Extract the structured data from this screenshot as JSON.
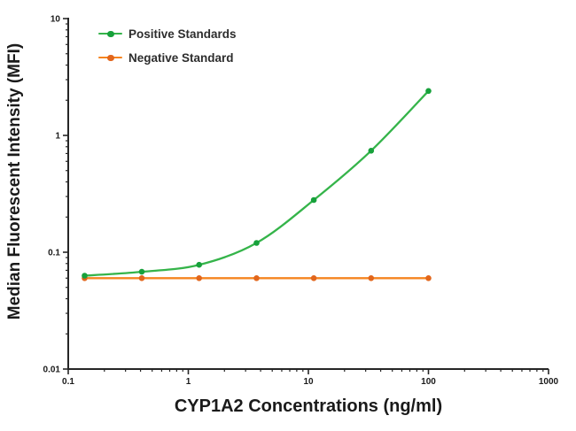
{
  "figure": {
    "background": "#ffffff",
    "axis_color": "#262626",
    "tick_label_color": "#1a1a1a"
  },
  "chart_data": {
    "type": "line",
    "title": "",
    "xlabel": "CYP1A2 Concentrations (ng/ml)",
    "ylabel": "Median Fluorescent Intensity  (MFI)",
    "x_scale": "log",
    "y_scale": "log",
    "xlim": [
      0.1,
      1000
    ],
    "ylim": [
      0.01,
      10
    ],
    "x_ticks": [
      "0.1",
      "1",
      "10",
      "100",
      "1000"
    ],
    "y_ticks": [
      "0.01",
      "0.1",
      "1",
      "10"
    ],
    "grid": false,
    "legend_position": "inside-top-left",
    "x": [
      0.137,
      0.41,
      1.23,
      3.7,
      11.1,
      33.3,
      100
    ],
    "series": [
      {
        "name": "Positive Standards",
        "line_color": "#35b44a",
        "marker_color": "#17a13b",
        "smooth": true,
        "values": [
          0.063,
          0.068,
          0.078,
          0.12,
          0.28,
          0.74,
          2.4
        ]
      },
      {
        "name": "Negative Standard",
        "line_color": "#f5841f",
        "marker_color": "#e2661c",
        "smooth": false,
        "values": [
          0.06,
          0.06,
          0.06,
          0.06,
          0.06,
          0.06,
          0.06
        ]
      }
    ]
  }
}
